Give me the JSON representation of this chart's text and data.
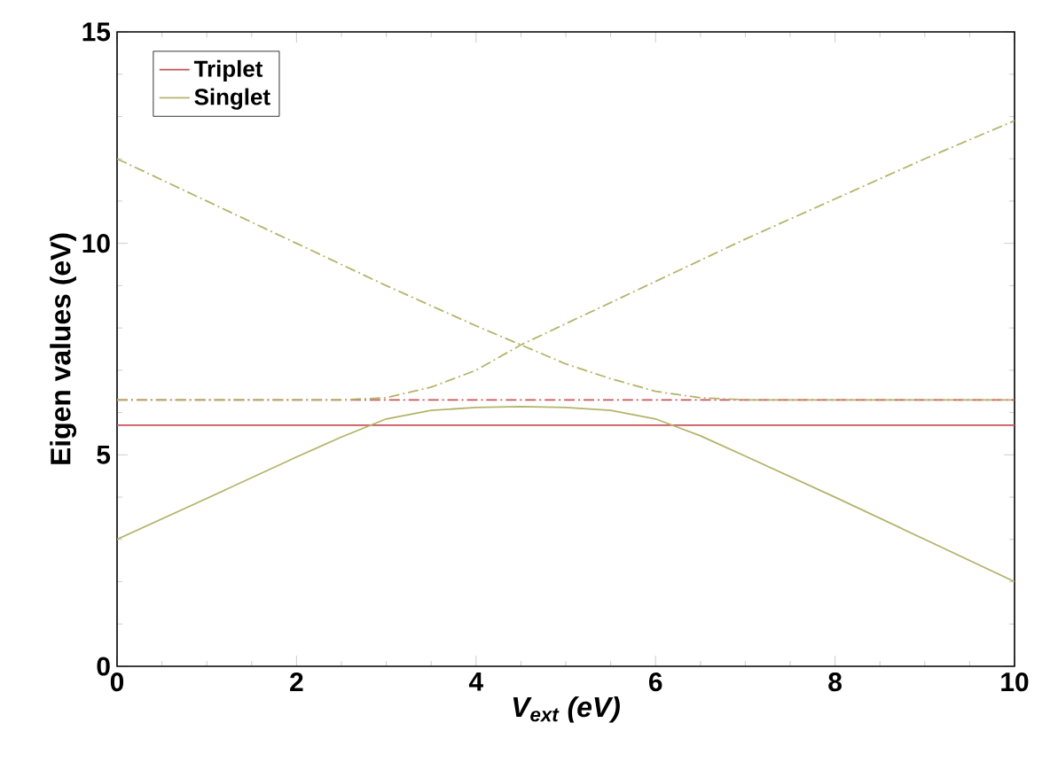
{
  "chart_data": {
    "type": "line",
    "xlabel": "V$_{ext}$ (eV)",
    "ylabel": "Eigen values (eV)",
    "xlim": [
      0,
      10
    ],
    "ylim": [
      0,
      15
    ],
    "xticks": [
      0,
      2,
      4,
      6,
      8,
      10
    ],
    "yticks": [
      0,
      5,
      10,
      15
    ],
    "legend": "top left",
    "grid": false,
    "marker": "none",
    "series": [
      {
        "name": "Triplet",
        "color": "#c8555a",
        "line_style": "solid",
        "x": [
          0,
          10
        ],
        "values": [
          5.7,
          5.7
        ]
      },
      {
        "name": "Singlet",
        "color": "#b3b46a",
        "line_style": "solid",
        "x": [
          0,
          1,
          2,
          2.5,
          3,
          3.5,
          4,
          4.5,
          5,
          5.5,
          6,
          6.5,
          7,
          8,
          9,
          10
        ],
        "values": [
          3.0,
          3.97,
          4.95,
          5.42,
          5.85,
          6.05,
          6.12,
          6.14,
          6.12,
          6.05,
          5.85,
          5.45,
          4.97,
          4.0,
          3.0,
          2.0
        ]
      },
      {
        "color": "#c8555a",
        "line_style": "dashdot",
        "x": [
          0,
          10
        ],
        "values": [
          6.3,
          6.3
        ]
      },
      {
        "color": "#b3b46a",
        "line_style": "dashdot",
        "x": [
          0,
          1,
          2,
          3,
          4,
          4.5,
          5,
          5.5,
          6,
          6.5,
          7,
          10
        ],
        "values": [
          12.0,
          11.0,
          10.0,
          9.0,
          8.05,
          7.6,
          7.15,
          6.8,
          6.5,
          6.35,
          6.3,
          6.3
        ]
      },
      {
        "color": "#b3b46a",
        "line_style": "dashdot",
        "x": [
          0,
          2.5,
          3,
          3.5,
          4,
          4.5,
          5,
          6,
          7,
          8,
          9,
          10
        ],
        "values": [
          6.3,
          6.3,
          6.35,
          6.6,
          7.0,
          7.6,
          8.1,
          9.1,
          10.1,
          11.05,
          12.0,
          12.9
        ]
      }
    ]
  }
}
